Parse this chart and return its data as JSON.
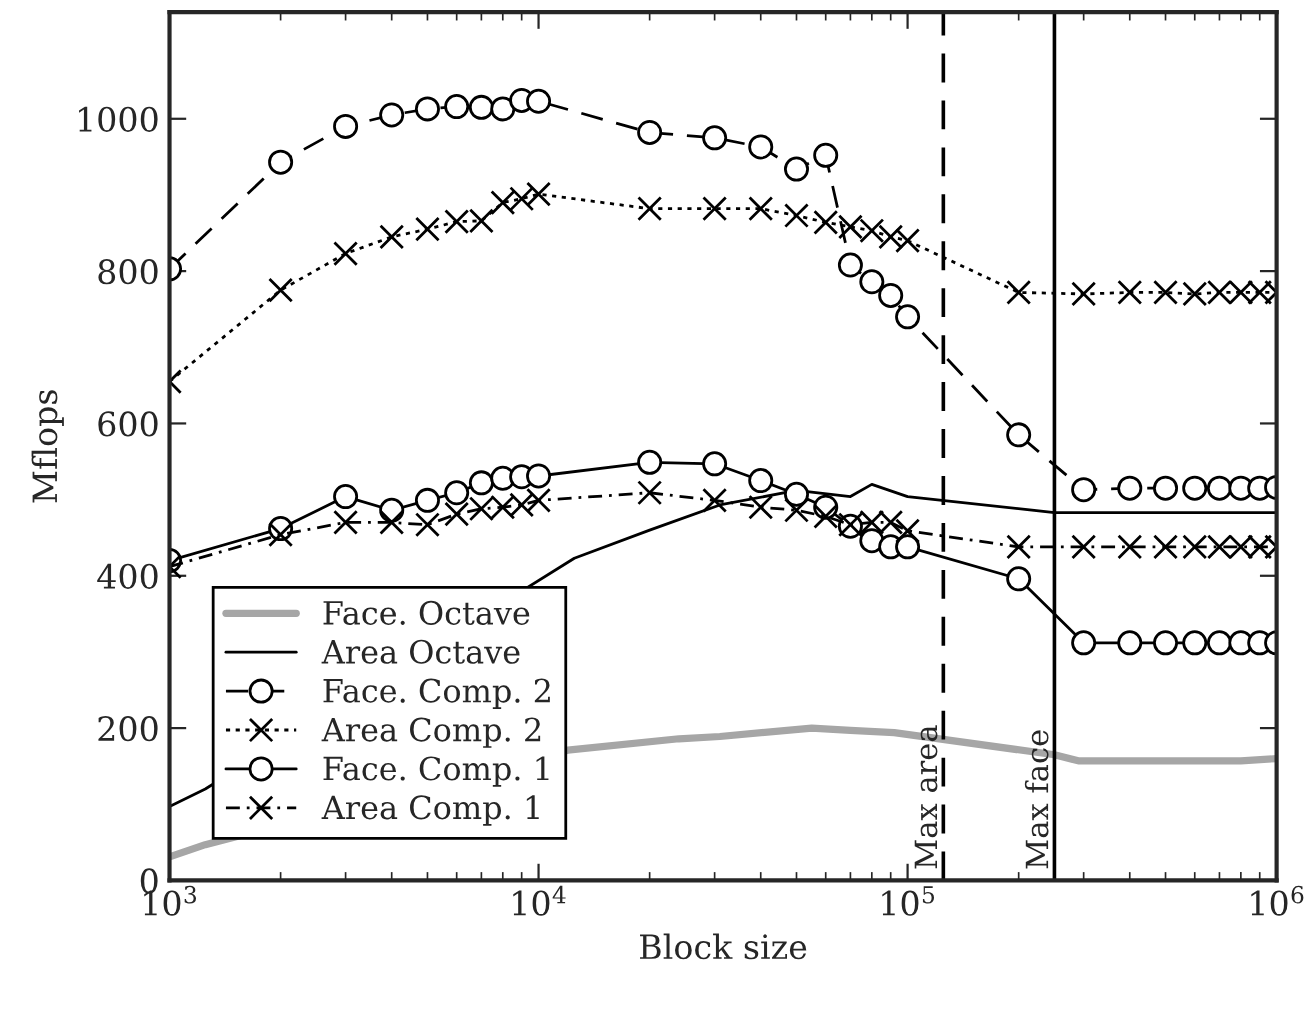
{
  "chart_data": {
    "type": "line",
    "xlabel": "Block size",
    "ylabel": "Mflops",
    "log": "x",
    "xlim": [
      1000,
      1000000
    ],
    "ylim": [
      0,
      1140
    ],
    "xticks": [
      {
        "value": 1000,
        "label": "10$^{3}$"
      },
      {
        "value": 10000,
        "label": "10$^{4}$"
      },
      {
        "value": 100000,
        "label": "10$^{5}$"
      },
      {
        "value": 1000000,
        "label": "10$^{6}$"
      }
    ],
    "yticks": [
      0,
      200,
      400,
      600,
      800,
      1000
    ],
    "grid": false,
    "legend": "bottom left",
    "series": [
      {
        "name": "Face. Octave",
        "color": "#a6a6a6",
        "marker": "none",
        "line_style": "solid",
        "x": [
          1000,
          1250,
          12000,
          24000,
          31000,
          55000,
          70000,
          92000,
          250000,
          290000,
          800000,
          1000000
        ],
        "values": [
          31,
          47,
          171,
          186,
          189,
          200,
          197,
          194,
          165,
          157,
          157,
          160
        ]
      },
      {
        "name": "Area Octave",
        "color": "#000000",
        "marker": "none",
        "line_style": "solid",
        "x": [
          1000,
          1250,
          12500,
          20000,
          31000,
          50000,
          70000,
          80000,
          100000,
          250000,
          1000000
        ],
        "values": [
          97,
          120,
          423,
          460,
          493,
          512,
          504,
          520,
          504,
          483,
          483
        ]
      },
      {
        "name": "Face. Comp. 2",
        "color": "#000000",
        "marker": "circle",
        "line_style": "dashed",
        "x": [
          1000,
          2000,
          3000,
          4000,
          5000,
          6000,
          7000,
          8000,
          9000,
          10000,
          20000,
          30000,
          40000,
          50000,
          60000,
          70000,
          80000,
          90000,
          100000,
          200000,
          300000,
          400000,
          500000,
          600000,
          700000,
          800000,
          900000,
          1000000
        ],
        "values": [
          803,
          943,
          990,
          1005,
          1013,
          1016,
          1015,
          1013,
          1024,
          1023,
          982,
          975,
          963,
          934,
          952,
          808,
          786,
          768,
          740,
          585,
          513,
          515,
          515,
          515,
          515,
          515,
          515,
          516
        ]
      },
      {
        "name": "Area Comp. 2",
        "color": "#000000",
        "marker": "cross",
        "line_style": "dotted",
        "x": [
          1000,
          2000,
          3000,
          4000,
          5000,
          6000,
          7000,
          8000,
          9000,
          10000,
          20000,
          30000,
          40000,
          50000,
          60000,
          70000,
          80000,
          90000,
          100000,
          200000,
          300000,
          400000,
          500000,
          600000,
          700000,
          800000,
          900000,
          1000000
        ],
        "values": [
          655,
          775,
          823,
          845,
          855,
          865,
          866,
          890,
          895,
          901,
          882,
          882,
          882,
          873,
          864,
          858,
          853,
          845,
          840,
          772,
          770,
          772,
          772,
          770,
          772,
          772,
          772,
          772
        ]
      },
      {
        "name": "Face. Comp. 1",
        "color": "#000000",
        "marker": "circle",
        "line_style": "solid",
        "x": [
          1000,
          2000,
          3000,
          4000,
          5000,
          6000,
          7000,
          8000,
          9000,
          10000,
          20000,
          30000,
          40000,
          50000,
          60000,
          70000,
          80000,
          90000,
          100000,
          200000,
          300000,
          400000,
          500000,
          600000,
          700000,
          800000,
          900000,
          1000000
        ],
        "values": [
          420,
          462,
          504,
          486,
          499,
          509,
          522,
          528,
          530,
          531,
          549,
          547,
          525,
          507,
          490,
          465,
          446,
          438,
          438,
          396,
          312,
          312,
          312,
          312,
          312,
          312,
          312,
          312
        ]
      },
      {
        "name": "Area Comp. 1",
        "color": "#000000",
        "marker": "cross",
        "line_style": "dashdot",
        "x": [
          1000,
          2000,
          3000,
          4000,
          5000,
          6000,
          7000,
          8000,
          9000,
          10000,
          20000,
          30000,
          40000,
          50000,
          60000,
          70000,
          80000,
          90000,
          100000,
          200000,
          300000,
          400000,
          500000,
          600000,
          700000,
          800000,
          900000,
          1000000
        ],
        "values": [
          412,
          454,
          470,
          470,
          467,
          481,
          488,
          490,
          493,
          499,
          509,
          499,
          490,
          486,
          478,
          467,
          470,
          470,
          459,
          438,
          438,
          438,
          438,
          438,
          438,
          438,
          438,
          438
        ]
      }
    ],
    "ref_lines": [
      {
        "axis": "x",
        "value": 125000,
        "label": "Max area",
        "color": "#000000",
        "line_style": "dashed"
      },
      {
        "axis": "x",
        "value": 250000,
        "label": "Max face",
        "color": "#000000",
        "line_style": "solid"
      }
    ]
  }
}
